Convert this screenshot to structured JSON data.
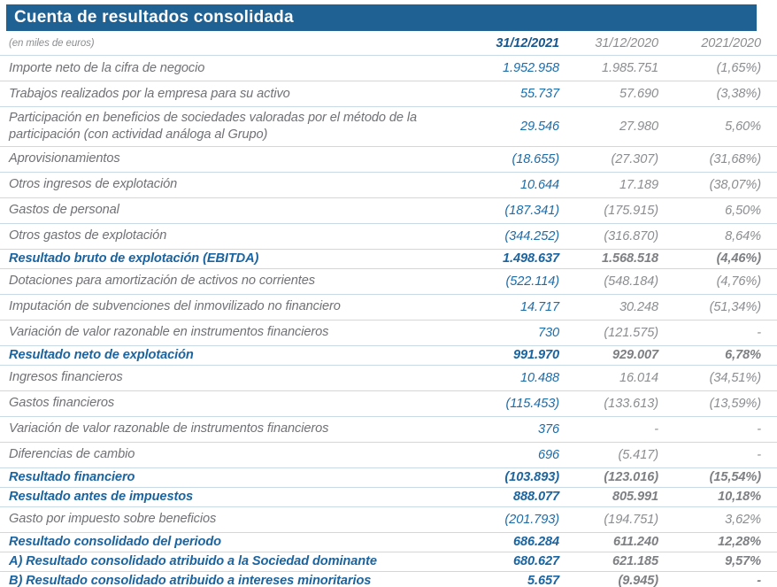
{
  "title": "Cuenta de resultados consolidada",
  "subtitle": "(en miles de euros)",
  "columns": [
    "31/12/2021",
    "31/12/2020",
    "2021/2020"
  ],
  "colors": {
    "header_bar_blue": "#206193",
    "title_text": "#ffffff",
    "value_blue_2021": "#1e6ca8",
    "bold_row_blue": "#1b649f",
    "gray_values": "#8b8d90",
    "label_gray": "#707175",
    "row_separator": "#c9dae7"
  },
  "rows": [
    {
      "label": "Importe neto de la cifra de negocio",
      "v2021": "1.952.958",
      "v2020": "1.985.751",
      "pct": "(1,65%)",
      "style": "normal"
    },
    {
      "label": "Trabajos realizados por la empresa para su activo",
      "v2021": "55.737",
      "v2020": "57.690",
      "pct": "(3,38%)",
      "style": "normal"
    },
    {
      "label": "Participación en beneficios de sociedades valoradas por el método de la participación (con actividad análoga al Grupo)",
      "v2021": "29.546",
      "v2020": "27.980",
      "pct": "5,60%",
      "style": "normal"
    },
    {
      "label": "Aprovisionamientos",
      "v2021": "(18.655)",
      "v2020": "(27.307)",
      "pct": "(31,68%)",
      "style": "normal"
    },
    {
      "label": "Otros ingresos de explotación",
      "v2021": "10.644",
      "v2020": "17.189",
      "pct": "(38,07%)",
      "style": "normal"
    },
    {
      "label": "Gastos de personal",
      "v2021": "(187.341)",
      "v2020": "(175.915)",
      "pct": "6,50%",
      "style": "normal"
    },
    {
      "label": "Otros gastos de explotación",
      "v2021": "(344.252)",
      "v2020": "(316.870)",
      "pct": "8,64%",
      "style": "normal"
    },
    {
      "label": "Resultado bruto de explotación (EBITDA)",
      "v2021": "1.498.637",
      "v2020": "1.568.518",
      "pct": "(4,46%)",
      "style": "bold"
    },
    {
      "label": "Dotaciones para amortización de activos no corrientes",
      "v2021": "(522.114)",
      "v2020": "(548.184)",
      "pct": "(4,76%)",
      "style": "normal"
    },
    {
      "label": "Imputación de subvenciones del inmovilizado no financiero",
      "v2021": "14.717",
      "v2020": "30.248",
      "pct": "(51,34%)",
      "style": "normal"
    },
    {
      "label": "Variación de valor razonable en instrumentos financieros",
      "v2021": "730",
      "v2020": "(121.575)",
      "pct": "-",
      "style": "normal"
    },
    {
      "label": "Resultado neto de explotación",
      "v2021": "991.970",
      "v2020": "929.007",
      "pct": "6,78%",
      "style": "bold"
    },
    {
      "label": "Ingresos financieros",
      "v2021": "10.488",
      "v2020": "16.014",
      "pct": "(34,51%)",
      "style": "normal"
    },
    {
      "label": "Gastos financieros",
      "v2021": "(115.453)",
      "v2020": "(133.613)",
      "pct": "(13,59%)",
      "style": "normal"
    },
    {
      "label": "Variación de valor razonable de instrumentos financieros",
      "v2021": "376",
      "v2020": "-",
      "pct": "-",
      "style": "normal"
    },
    {
      "label": "Diferencias de cambio",
      "v2021": "696",
      "v2020": "(5.417)",
      "pct": "-",
      "style": "normal"
    },
    {
      "label": "Resultado financiero",
      "v2021": "(103.893)",
      "v2020": "(123.016)",
      "pct": "(15,54%)",
      "style": "bold"
    },
    {
      "label": "Resultado antes de impuestos",
      "v2021": "888.077",
      "v2020": "805.991",
      "pct": "10,18%",
      "style": "bold"
    },
    {
      "label": "Gasto por impuesto sobre beneficios",
      "v2021": "(201.793)",
      "v2020": "(194.751)",
      "pct": "3,62%",
      "style": "normal"
    },
    {
      "label": "Resultado consolidado del periodo",
      "v2021": "686.284",
      "v2020": "611.240",
      "pct": "12,28%",
      "style": "bold"
    },
    {
      "label": "A) Resultado consolidado atribuido a la Sociedad dominante",
      "v2021": "680.627",
      "v2020": "621.185",
      "pct": "9,57%",
      "style": "bold"
    },
    {
      "label": "B) Resultado consolidado atribuido a intereses minoritarios",
      "v2021": "5.657",
      "v2020": "(9.945)",
      "pct": "-",
      "style": "bold"
    }
  ]
}
